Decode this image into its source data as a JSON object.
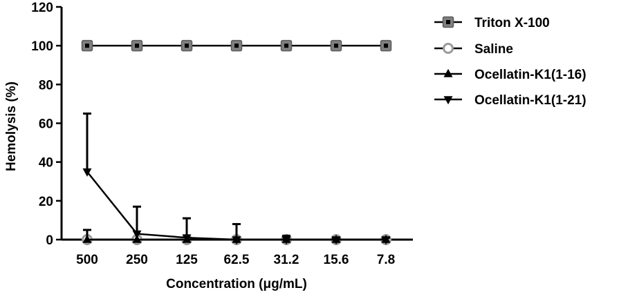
{
  "chart_data": {
    "type": "line",
    "xlabel": "Concentration (μg/mL)",
    "ylabel": "Hemolysis (%)",
    "categories": [
      "500",
      "250",
      "125",
      "62.5",
      "31.2",
      "15.6",
      "7.8"
    ],
    "ylim": [
      0,
      120
    ],
    "yticks": [
      0,
      20,
      40,
      60,
      80,
      100,
      120
    ],
    "grid": false,
    "legend_position": "right",
    "series": [
      {
        "name": "Triton X-100",
        "marker": "square",
        "values": [
          100,
          100,
          100,
          100,
          100,
          100,
          100
        ],
        "error": [
          0,
          0,
          0,
          0,
          0,
          0,
          0
        ]
      },
      {
        "name": "Saline",
        "marker": "circle",
        "values": [
          0,
          0,
          0,
          0,
          0,
          0,
          0
        ],
        "error": [
          0,
          0,
          0,
          0,
          0,
          0,
          0
        ]
      },
      {
        "name": "Ocellatin-K1(1-16)",
        "marker": "triangle-up",
        "values": [
          0,
          0,
          0,
          0,
          0,
          0,
          0
        ],
        "error": [
          5,
          0,
          0,
          0,
          2,
          0,
          1
        ]
      },
      {
        "name": "Ocellatin-K1(1-21)",
        "marker": "triangle-down",
        "values": [
          35,
          3,
          1,
          0,
          0,
          0,
          0
        ],
        "error": [
          30,
          14,
          10,
          8,
          0,
          1,
          0
        ]
      }
    ]
  }
}
